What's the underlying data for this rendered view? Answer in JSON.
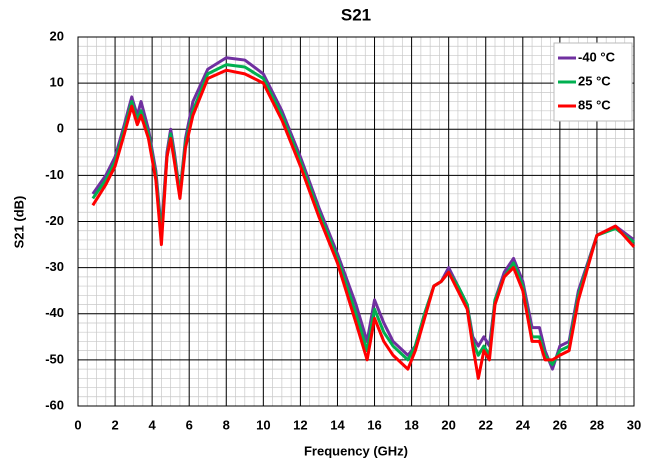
{
  "chart_data": {
    "type": "line",
    "title": "S21",
    "xlabel": "Frequency (GHz)",
    "ylabel": "S21 (dB)",
    "x": [
      0.8,
      1.5,
      2.0,
      2.5,
      2.9,
      3.2,
      3.4,
      3.8,
      4.2,
      4.5,
      4.8,
      5.0,
      5.2,
      5.5,
      5.8,
      6.2,
      7.0,
      8.0,
      9.0,
      10.0,
      11.0,
      12.0,
      13.0,
      14.0,
      15.0,
      15.6,
      16.0,
      16.5,
      17.0,
      17.8,
      18.2,
      18.7,
      19.2,
      19.6,
      20.0,
      20.5,
      21.0,
      21.3,
      21.6,
      21.9,
      22.2,
      22.5,
      23.0,
      23.5,
      24.0,
      24.5,
      24.9,
      25.2,
      25.6,
      26.0,
      26.5,
      27.0,
      28.0,
      29.0,
      30.0
    ],
    "series": [
      {
        "name": "-40 °C",
        "color": "#7030a0",
        "values": [
          -14,
          -10,
          -6,
          1,
          7,
          3,
          6,
          0,
          -9,
          -22,
          -5,
          0,
          -5,
          -14,
          -2,
          6,
          13,
          15.5,
          15,
          12,
          4,
          -6,
          -17,
          -27,
          -38,
          -46,
          -37,
          -42,
          -46,
          -49,
          -47,
          -40,
          -34,
          -33,
          -30,
          -34,
          -38,
          -45,
          -47,
          -45,
          -47,
          -37,
          -31,
          -28,
          -33,
          -43,
          -43,
          -48,
          -52,
          -47,
          -46,
          -35,
          -23,
          -21,
          -24
        ]
      },
      {
        "name": "25 °C",
        "color": "#00b050",
        "values": [
          -15,
          -11,
          -7,
          0,
          6,
          2,
          4,
          -1,
          -10,
          -23,
          -6,
          -1,
          -6,
          -14,
          -3,
          4,
          12,
          14,
          13.5,
          11,
          3,
          -7,
          -18,
          -28,
          -40,
          -48,
          -39,
          -44,
          -47,
          -50,
          -47,
          -40,
          -34,
          -33,
          -31,
          -34,
          -38,
          -46,
          -49,
          -47,
          -49,
          -37,
          -32,
          -29,
          -34,
          -45,
          -45,
          -49,
          -51,
          -48,
          -47,
          -36,
          -23,
          -21.5,
          -24.5
        ]
      },
      {
        "name": "85 °C",
        "color": "#ff0000",
        "values": [
          -16.5,
          -12,
          -8,
          -1,
          5,
          1,
          3,
          -2,
          -11,
          -25,
          -6,
          -2,
          -7,
          -15,
          -4,
          3,
          11,
          12.8,
          12,
          10,
          2,
          -8,
          -19,
          -29,
          -42,
          -50,
          -41,
          -46,
          -49,
          -52,
          -48,
          -41,
          -34,
          -33,
          -31,
          -35,
          -39,
          -47,
          -54,
          -48,
          -50,
          -38,
          -32,
          -30,
          -35,
          -46,
          -46,
          -50,
          -50,
          -49,
          -48,
          -37,
          -23,
          -21,
          -25.5
        ]
      }
    ],
    "xlim": [
      0,
      30
    ],
    "xticks": [
      0,
      2,
      4,
      6,
      8,
      10,
      12,
      14,
      16,
      18,
      20,
      22,
      24,
      26,
      28,
      30
    ],
    "ylim": [
      -60,
      20
    ],
    "yticks": [
      -60,
      -50,
      -40,
      -30,
      -20,
      -10,
      0,
      10,
      20
    ],
    "grid": true,
    "minor_grid": {
      "x": 0.5,
      "y": 2
    },
    "legend": "upper right"
  }
}
